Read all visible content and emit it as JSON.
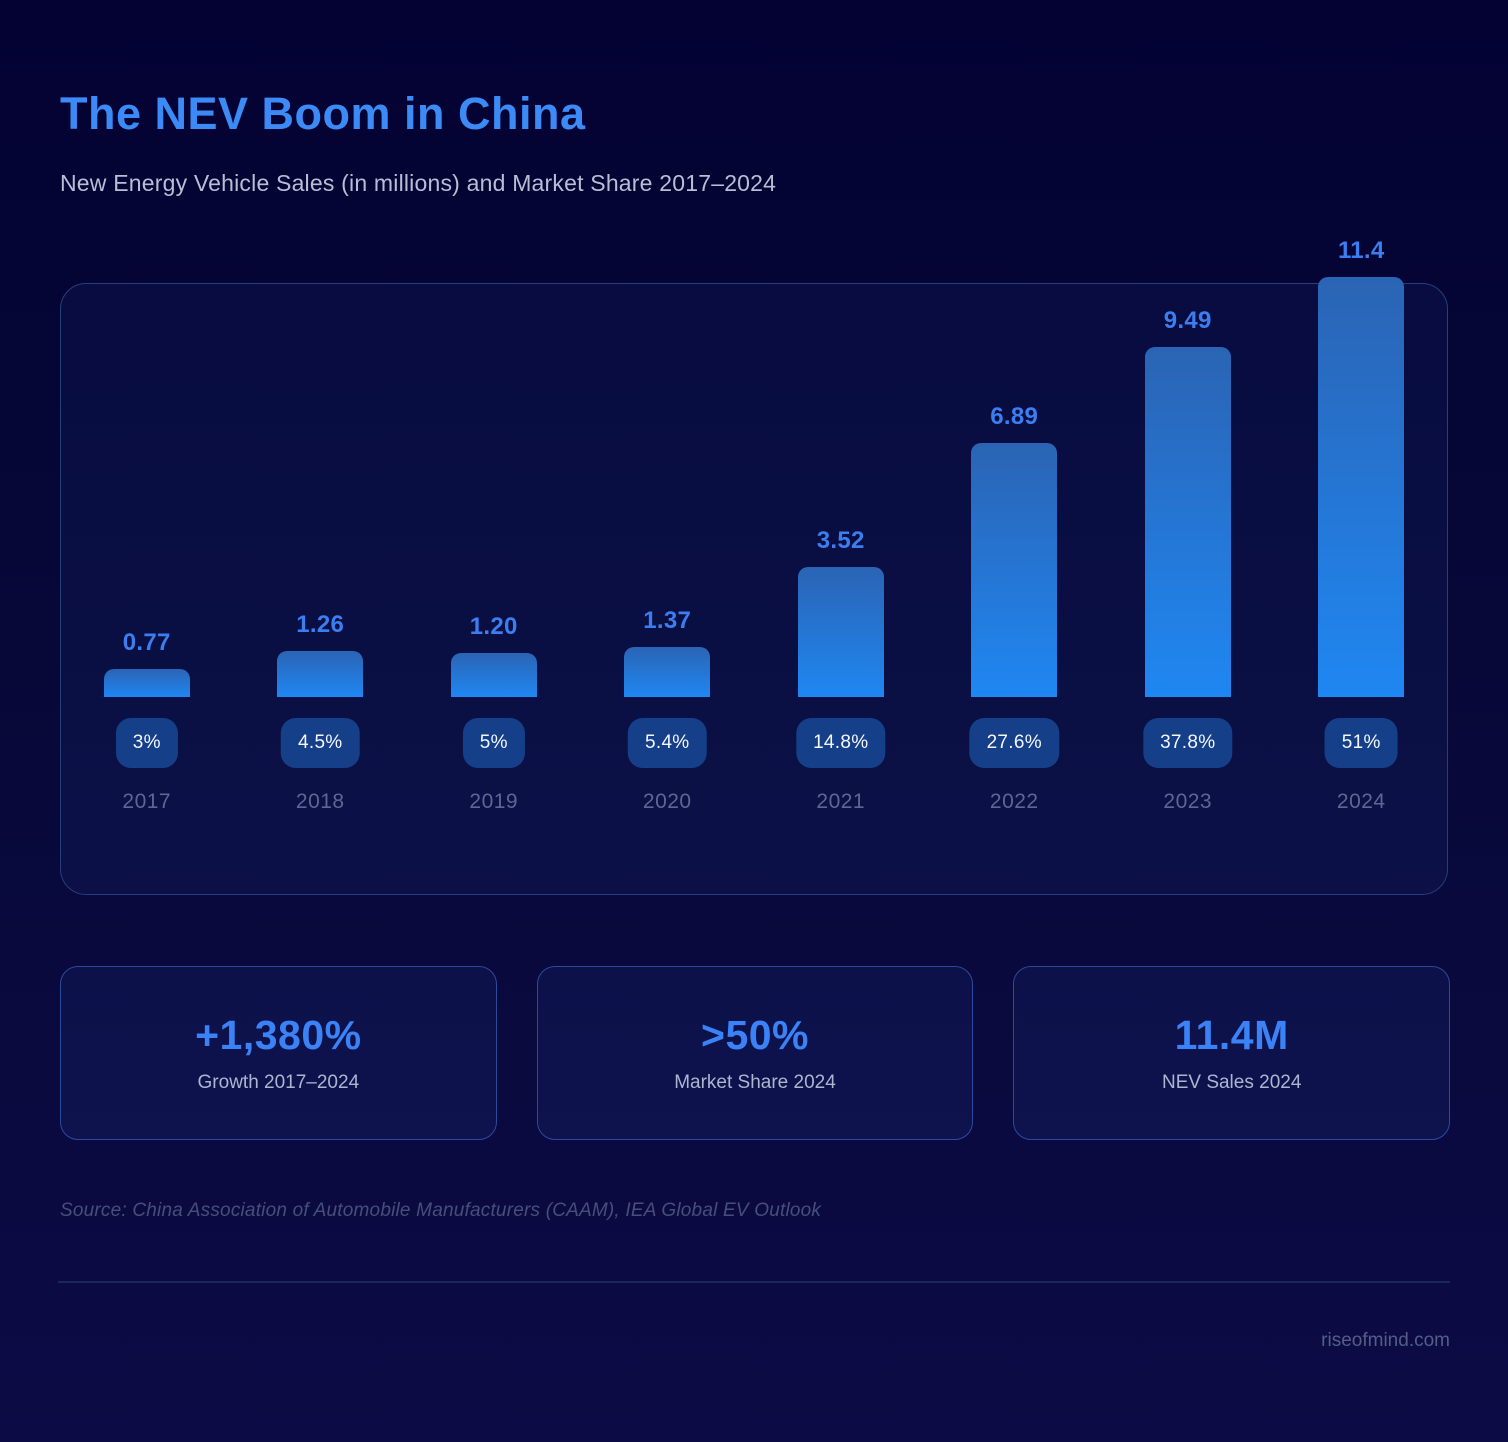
{
  "page": {
    "title": "The NEV Boom in China",
    "subtitle": "New Energy Vehicle Sales (in millions) and Market Share 2017–2024",
    "source": "Source: China Association of Automobile Manufacturers (CAAM), IEA Global EV Outlook",
    "website": "riseofmind.com"
  },
  "chart_data": {
    "type": "bar",
    "title": "New Energy Vehicle Sales (in millions) and Market Share 2017–2024",
    "categories": [
      "2017",
      "2018",
      "2019",
      "2020",
      "2021",
      "2022",
      "2023",
      "2024"
    ],
    "series": [
      {
        "name": "NEV Sales (millions)",
        "values": [
          0.77,
          1.26,
          1.2,
          1.37,
          3.52,
          6.89,
          9.49,
          11.4
        ],
        "labels": [
          "0.77",
          "1.26",
          "1.20",
          "1.37",
          "3.52",
          "6.89",
          "9.49",
          "11.4"
        ]
      },
      {
        "name": "Market Share (%)",
        "values": [
          3,
          4.5,
          5,
          5.4,
          14.8,
          27.6,
          37.8,
          51
        ],
        "labels": [
          "3%",
          "4.5%",
          "5%",
          "5.4%",
          "14.8%",
          "27.6%",
          "37.8%",
          "51%"
        ]
      }
    ],
    "ylim": [
      0,
      11.4
    ],
    "xlabel": "",
    "ylabel": "NEV Sales (millions)",
    "grid": false,
    "legend_position": "none",
    "colors": {
      "bar_gradient_top": "#2b64b4",
      "bar_gradient_bottom": "#1f87f2",
      "value_label": "#3b7ef0",
      "badge_background": "#153f88",
      "badge_text": "#ffffff",
      "year_label": "#5d6890",
      "accent": "#3b82f6"
    }
  },
  "stats": [
    {
      "value": "+1,380%",
      "label": "Growth 2017–2024"
    },
    {
      "value": ">50%",
      "label": "Market Share 2024"
    },
    {
      "value": "11.4M",
      "label": "NEV Sales 2024"
    }
  ]
}
